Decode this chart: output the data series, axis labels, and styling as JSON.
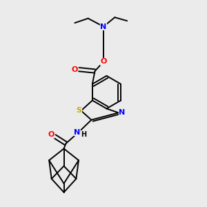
{
  "bg_color": "#ebebeb",
  "bond_color": "#000000",
  "line_width": 1.4,
  "atom_colors": {
    "N": "#0000ff",
    "O": "#ff0000",
    "S": "#ccaa00",
    "H": "#000000",
    "C": "#000000"
  },
  "font_size": 8,
  "fig_size": [
    3.0,
    3.0
  ],
  "dpi": 100
}
